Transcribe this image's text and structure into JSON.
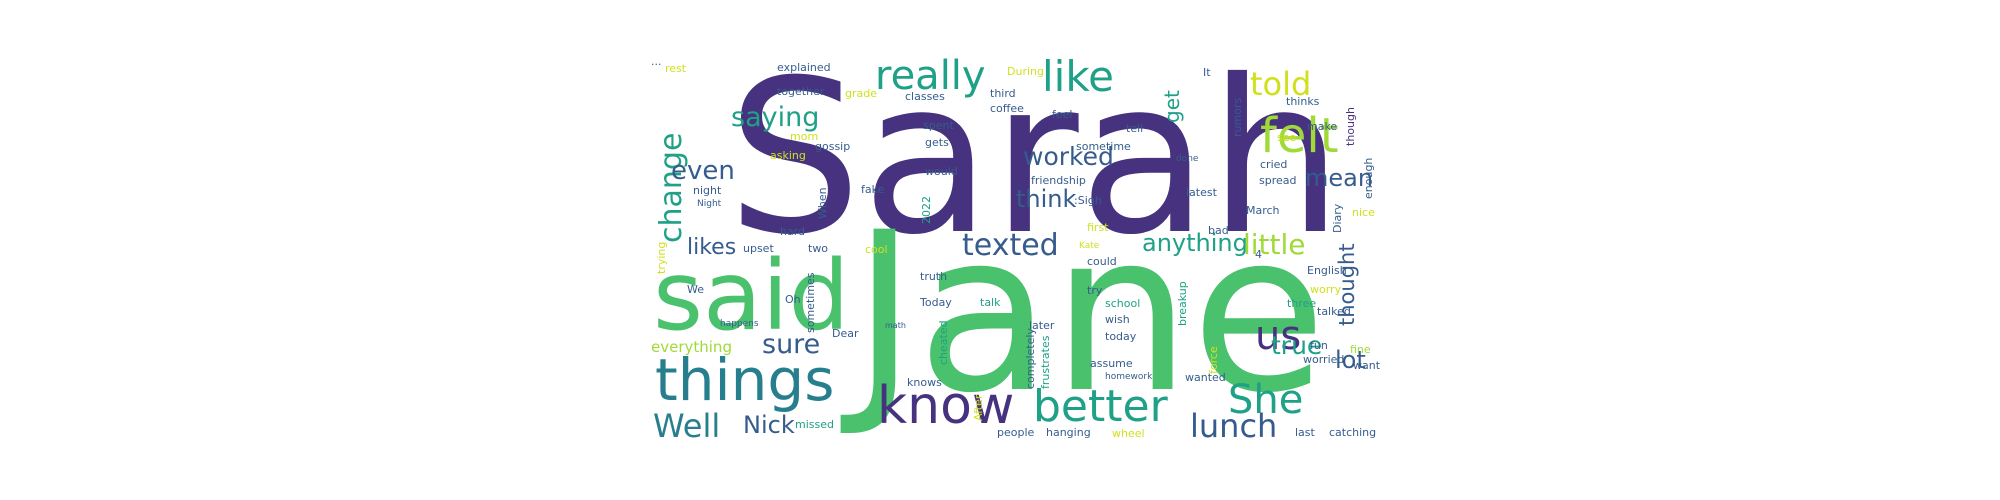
{
  "palette": {
    "purple": "#46327e",
    "indigo": "#365c8d",
    "blue": "#277f8e",
    "teal": "#1fa187",
    "green": "#4ac16d",
    "lime": "#a0da39",
    "yellow": "#d0e11c",
    "violet": "#5b3a8e"
  },
  "words": [
    "Sarah",
    "Jane",
    "said",
    "things",
    "know",
    "better",
    "She",
    "Well",
    "us",
    "lunch",
    "really",
    "like",
    "told",
    "felt",
    "change",
    "saying",
    "get",
    "worked",
    "even",
    "think",
    "mean",
    "texted",
    "anything",
    "little",
    "thought",
    "likes",
    "sure",
    "true",
    "lot",
    "Nick",
    "everything",
    "explained",
    "together",
    "grade",
    "third",
    "coffee",
    "During",
    "It",
    "rumors",
    "thinks",
    "though",
    "enough",
    "rest",
    "...",
    "mom",
    "spent",
    "gets",
    "would",
    "feel",
    "tell",
    "see",
    "make",
    "asking",
    "gossip",
    "sometime",
    "done",
    "cried",
    "spread",
    "friendship",
    "night",
    "Night",
    "When",
    "fake",
    "2022",
    ":Sigh",
    "latest",
    "Diary",
    "nice",
    "March",
    "bad",
    "hard",
    "first",
    "trying",
    "upset",
    "two",
    "cool",
    "Kate",
    "could",
    "truth",
    "English",
    "worry",
    "We",
    "Oh",
    "sometimes",
    "Today",
    "breakup",
    "try",
    "talk",
    "school",
    "three",
    "talked",
    "happens",
    "math",
    "Dear",
    "cheated",
    "later",
    "wish",
    "today",
    "force",
    "completely",
    "frustrates",
    "fun",
    "worried",
    "fine",
    "want",
    "knows",
    "assume",
    "homework",
    "wanted",
    "missed",
    "After",
    "people",
    "hanging",
    "wheel",
    "last",
    "catching",
    "classes",
    "4"
  ]
}
